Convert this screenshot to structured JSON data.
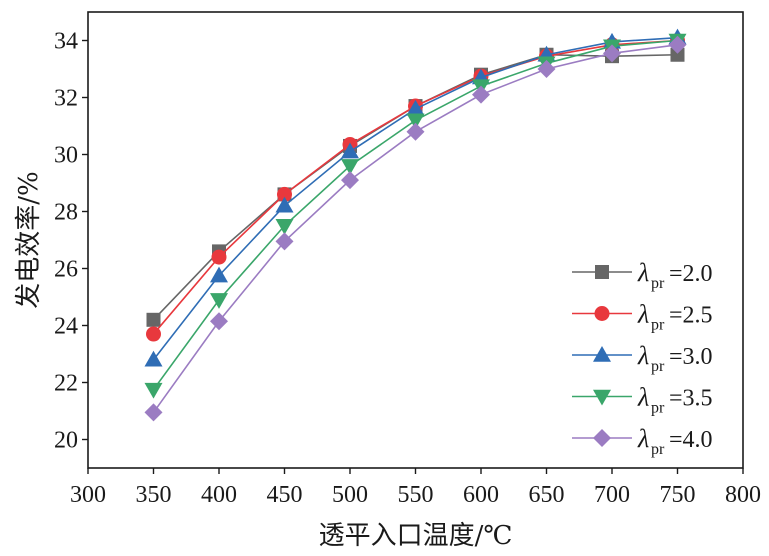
{
  "chart_data": {
    "type": "line",
    "title": "",
    "xlabel": "透平入口温度/℃",
    "ylabel": "发电效率/%",
    "xlim": [
      300,
      800
    ],
    "ylim": [
      19,
      35
    ],
    "x_ticks": [
      300,
      350,
      400,
      450,
      500,
      550,
      600,
      650,
      700,
      750,
      800
    ],
    "y_ticks": [
      20,
      22,
      24,
      26,
      28,
      30,
      32,
      34
    ],
    "x_tick_labels": [
      "300",
      "350",
      "400",
      "450",
      "500",
      "550",
      "600",
      "650",
      "700",
      "750",
      "800"
    ],
    "y_tick_labels": [
      "20",
      "22",
      "24",
      "26",
      "28",
      "30",
      "32",
      "34"
    ],
    "grid": false,
    "legend_position": "bottom-right",
    "x": [
      350,
      400,
      450,
      500,
      550,
      600,
      650,
      700,
      750
    ],
    "series": [
      {
        "name": "λpr=2.0",
        "symbol": "λ",
        "sub": "pr",
        "suffix": "=2.0",
        "color": "#666666",
        "marker": "square",
        "values": [
          24.2,
          26.6,
          28.6,
          30.3,
          31.7,
          32.8,
          33.5,
          33.45,
          33.5
        ]
      },
      {
        "name": "λpr=2.5",
        "symbol": "λ",
        "sub": "pr",
        "suffix": "=2.5",
        "color": "#e8383d",
        "marker": "circle",
        "values": [
          23.7,
          26.4,
          28.6,
          30.35,
          31.7,
          32.75,
          33.45,
          33.85,
          34.0
        ]
      },
      {
        "name": "λpr=3.0",
        "symbol": "λ",
        "sub": "pr",
        "suffix": "=3.0",
        "color": "#2f6db5",
        "marker": "triangle-up",
        "values": [
          22.8,
          25.75,
          28.2,
          30.1,
          31.6,
          32.7,
          33.5,
          33.95,
          34.1
        ]
      },
      {
        "name": "λpr=3.5",
        "symbol": "λ",
        "sub": "pr",
        "suffix": "=3.5",
        "color": "#3aa66a",
        "marker": "triangle-down",
        "values": [
          21.75,
          24.9,
          27.5,
          29.6,
          31.2,
          32.4,
          33.2,
          33.8,
          34.0
        ]
      },
      {
        "name": "λpr=4.0",
        "symbol": "λ",
        "sub": "pr",
        "suffix": "=4.0",
        "color": "#9b7cc2",
        "marker": "diamond",
        "values": [
          20.95,
          24.15,
          26.95,
          29.1,
          30.8,
          32.1,
          33.0,
          33.55,
          33.85
        ]
      }
    ]
  }
}
